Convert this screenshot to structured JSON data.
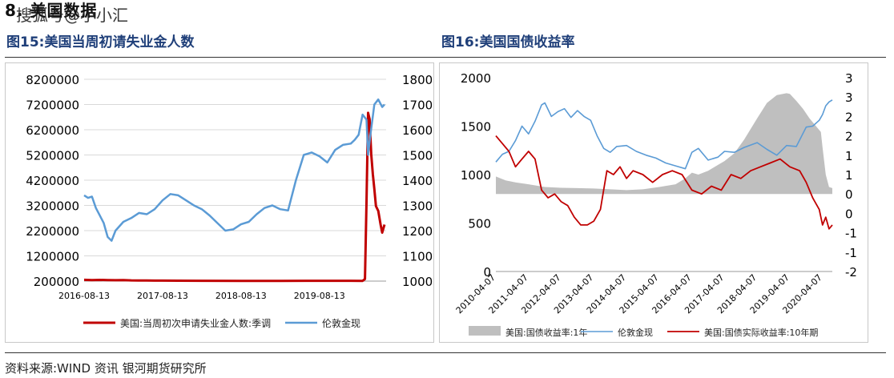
{
  "header": {
    "section_title": "8. 美国数据",
    "watermark": "搜狐号@小小汇"
  },
  "footer": {
    "source": "资料来源:WIND 资讯    银河期货研究所"
  },
  "colors": {
    "red": "#c00000",
    "blue": "#5b9bd5",
    "gray": "#bfbfbf",
    "title": "#1f3f79"
  },
  "chart_data": [
    {
      "title": "图15:美国当周初请失业金人数",
      "type": "line",
      "x_ticks": [
        "2016-08-13",
        "2017-08-13",
        "2018-08-13",
        "2019-08-13"
      ],
      "x_range": [
        "2016-08-13",
        "2020-06-13"
      ],
      "y_left": {
        "min": 200000,
        "max": 8200000,
        "ticks": [
          "8200000",
          "7200000",
          "6200000",
          "5200000",
          "4200000",
          "3200000",
          "2200000",
          "1200000",
          "200000"
        ]
      },
      "y_right": {
        "min": 1000,
        "max": 1800,
        "ticks": [
          "1800",
          "1700",
          "1600",
          "1500",
          "1400",
          "1300",
          "1200",
          "1100",
          "1000"
        ]
      },
      "series": [
        {
          "name": "美国:当周初次申请失业金人数:季调",
          "axis": "left",
          "color": "#c00000",
          "x": [
            0,
            0.1,
            0.2,
            0.3,
            0.4,
            0.5,
            0.6,
            0.7,
            0.8,
            0.9,
            1.0,
            1.2,
            1.5,
            2.0,
            2.5,
            3.0,
            3.4,
            3.55,
            3.58,
            3.6,
            3.62,
            3.64,
            3.66,
            3.68,
            3.7,
            3.72,
            3.75,
            3.78,
            3.8,
            3.83
          ],
          "values": [
            250000,
            240000,
            248000,
            240000,
            235000,
            240000,
            230000,
            225000,
            222000,
            220000,
            218000,
            215000,
            212000,
            210000,
            210000,
            212000,
            212000,
            211000,
            282000,
            3310000,
            6870000,
            6620000,
            5240000,
            4440000,
            3850000,
            3170000,
            2980000,
            2440000,
            2120000,
            2440000
          ]
        },
        {
          "name": "伦敦金现",
          "axis": "right",
          "color": "#5b9bd5",
          "x": [
            0,
            0.05,
            0.1,
            0.15,
            0.2,
            0.25,
            0.3,
            0.35,
            0.4,
            0.5,
            0.6,
            0.7,
            0.8,
            0.9,
            1.0,
            1.1,
            1.2,
            1.3,
            1.4,
            1.5,
            1.6,
            1.7,
            1.8,
            1.9,
            2.0,
            2.1,
            2.2,
            2.3,
            2.4,
            2.5,
            2.6,
            2.7,
            2.8,
            2.9,
            3.0,
            3.1,
            3.2,
            3.3,
            3.4,
            3.45,
            3.5,
            3.55,
            3.6,
            3.62,
            3.65,
            3.7,
            3.75,
            3.8,
            3.83
          ],
          "values": [
            1340,
            1330,
            1335,
            1290,
            1260,
            1230,
            1175,
            1160,
            1200,
            1235,
            1250,
            1270,
            1265,
            1285,
            1320,
            1345,
            1340,
            1320,
            1300,
            1285,
            1260,
            1230,
            1200,
            1205,
            1225,
            1235,
            1265,
            1290,
            1300,
            1285,
            1280,
            1400,
            1500,
            1510,
            1495,
            1470,
            1520,
            1540,
            1545,
            1560,
            1580,
            1660,
            1640,
            1500,
            1580,
            1700,
            1720,
            1690,
            1700
          ]
        }
      ]
    },
    {
      "title": "图16:美国国债收益率",
      "type": "line",
      "x_ticks": [
        "2010-04-07",
        "2011-04-07",
        "2012-04-07",
        "2013-04-07",
        "2014-04-07",
        "2015-04-07",
        "2016-04-07",
        "2017-04-07",
        "2018-04-07",
        "2019-04-07",
        "2020-04-07"
      ],
      "x_range": [
        "2010-04-07",
        "2020-07-07"
      ],
      "y_left": {
        "min": 0,
        "max": 2000,
        "ticks": [
          "2000",
          "1500",
          "1000",
          "500",
          "0"
        ]
      },
      "y_right": {
        "min": -2,
        "max": 3,
        "ticks": [
          "3",
          "3",
          "2",
          "2",
          "1",
          "1",
          "0",
          "0",
          "-1",
          "-1",
          "-2"
        ]
      },
      "series": [
        {
          "name": "美国:国债收益率:1年",
          "axis": "right",
          "color": "#bfbfbf",
          "kind": "area",
          "x": [
            0,
            0.3,
            0.6,
            1.0,
            1.5,
            2.0,
            2.5,
            3.0,
            3.5,
            4.0,
            4.5,
            5.0,
            5.5,
            5.8,
            6.0,
            6.2,
            6.5,
            6.8,
            7.0,
            7.3,
            7.6,
            8.0,
            8.3,
            8.6,
            8.9,
            9.0,
            9.2,
            9.4,
            9.6,
            9.8,
            9.95,
            10.0,
            10.1,
            10.2,
            10.3
          ],
          "values": [
            0.45,
            0.35,
            0.3,
            0.25,
            0.18,
            0.16,
            0.15,
            0.14,
            0.12,
            0.1,
            0.12,
            0.18,
            0.25,
            0.4,
            0.55,
            0.5,
            0.6,
            0.75,
            0.85,
            1.05,
            1.4,
            1.95,
            2.35,
            2.55,
            2.6,
            2.58,
            2.4,
            2.2,
            1.95,
            1.75,
            1.6,
            1.2,
            0.5,
            0.18,
            0.15
          ]
        },
        {
          "name": "伦敦金现",
          "axis": "left",
          "color": "#5b9bd5",
          "x": [
            0,
            0.2,
            0.4,
            0.6,
            0.8,
            1.0,
            1.2,
            1.4,
            1.5,
            1.7,
            1.9,
            2.1,
            2.3,
            2.5,
            2.7,
            2.9,
            3.1,
            3.3,
            3.5,
            3.7,
            4.0,
            4.3,
            4.6,
            4.9,
            5.2,
            5.5,
            5.8,
            6.0,
            6.2,
            6.5,
            6.8,
            7.0,
            7.3,
            7.6,
            8.0,
            8.3,
            8.6,
            8.9,
            9.2,
            9.5,
            9.7,
            9.9,
            10.0,
            10.1,
            10.2,
            10.3
          ],
          "values": [
            1130,
            1210,
            1240,
            1350,
            1500,
            1420,
            1550,
            1720,
            1740,
            1600,
            1650,
            1680,
            1590,
            1660,
            1600,
            1560,
            1400,
            1270,
            1230,
            1290,
            1300,
            1240,
            1200,
            1170,
            1120,
            1090,
            1060,
            1230,
            1270,
            1150,
            1180,
            1240,
            1230,
            1280,
            1330,
            1260,
            1200,
            1300,
            1290,
            1490,
            1500,
            1560,
            1620,
            1710,
            1750,
            1770
          ]
        },
        {
          "name": "美国:国债实际收益率:10年期",
          "axis": "right",
          "color": "#c00000",
          "x": [
            0,
            0.2,
            0.4,
            0.6,
            0.8,
            1.0,
            1.2,
            1.4,
            1.6,
            1.8,
            2.0,
            2.2,
            2.4,
            2.6,
            2.8,
            3.0,
            3.2,
            3.4,
            3.6,
            3.8,
            4.0,
            4.2,
            4.5,
            4.8,
            5.1,
            5.4,
            5.7,
            6.0,
            6.3,
            6.6,
            6.9,
            7.2,
            7.5,
            7.8,
            8.1,
            8.4,
            8.7,
            9.0,
            9.3,
            9.5,
            9.7,
            9.9,
            10.0,
            10.1,
            10.2,
            10.3
          ],
          "values": [
            1.5,
            1.3,
            1.1,
            0.7,
            0.9,
            1.1,
            0.9,
            0.1,
            -0.1,
            0.0,
            -0.2,
            -0.3,
            -0.6,
            -0.8,
            -0.8,
            -0.7,
            -0.4,
            0.6,
            0.5,
            0.7,
            0.4,
            0.6,
            0.5,
            0.3,
            0.5,
            0.6,
            0.5,
            0.1,
            0.0,
            0.2,
            0.1,
            0.5,
            0.4,
            0.6,
            0.7,
            0.8,
            0.9,
            0.7,
            0.6,
            0.3,
            -0.1,
            -0.4,
            -0.8,
            -0.6,
            -0.9,
            -0.8
          ]
        }
      ]
    }
  ]
}
